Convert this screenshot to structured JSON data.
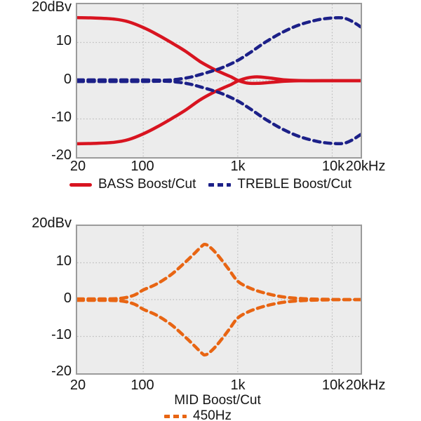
{
  "chart_data": [
    {
      "type": "line",
      "x_scale": "log",
      "x_range_hz": [
        20,
        20000
      ],
      "ylim": [
        -20,
        20
      ],
      "y_axis_unit_label": "20dBv",
      "y_tick_labels": [
        "10",
        "0",
        "-10",
        "-20"
      ],
      "y_tick_values": [
        10,
        0,
        -10,
        -20
      ],
      "x_tick_labels": [
        "20",
        "100",
        "1k",
        "10k",
        "20kHz"
      ],
      "x_tick_values_hz": [
        20,
        100,
        1000,
        10000,
        20000
      ],
      "grid_x_hz": [
        100,
        1000,
        10000
      ],
      "grid_y_db": [
        10,
        0,
        -10
      ],
      "plot_background": "#ececec",
      "grid_color": "#bdbdbd",
      "border_color": "#9b9b9b",
      "legend": [
        {
          "label": "BASS Boost/Cut",
          "color": "#d81420",
          "style": "solid"
        },
        {
          "label": "TREBLE Boost/Cut",
          "color": "#1c2088",
          "style": "dashed"
        }
      ],
      "series": [
        {
          "name": "BASS boost",
          "color": "#d81420",
          "style": "solid",
          "points": [
            [
              20,
              16.5
            ],
            [
              30,
              16.4
            ],
            [
              50,
              16.1
            ],
            [
              70,
              15.4
            ],
            [
              100,
              13.9
            ],
            [
              140,
              12.1
            ],
            [
              200,
              9.9
            ],
            [
              280,
              7.7
            ],
            [
              400,
              5.0
            ],
            [
              550,
              3.1
            ],
            [
              700,
              1.9
            ],
            [
              850,
              1.0
            ],
            [
              1000,
              0.1
            ],
            [
              1250,
              -0.6
            ],
            [
              1600,
              -0.7
            ],
            [
              2200,
              -0.45
            ],
            [
              3200,
              -0.15
            ],
            [
              5000,
              0
            ],
            [
              10000,
              0
            ],
            [
              20000,
              0
            ]
          ]
        },
        {
          "name": "BASS cut",
          "color": "#d81420",
          "style": "solid",
          "points": [
            [
              20,
              -16.5
            ],
            [
              30,
              -16.4
            ],
            [
              50,
              -16.1
            ],
            [
              70,
              -15.4
            ],
            [
              100,
              -13.9
            ],
            [
              140,
              -12.1
            ],
            [
              200,
              -9.9
            ],
            [
              280,
              -7.7
            ],
            [
              400,
              -5.0
            ],
            [
              550,
              -3.1
            ],
            [
              700,
              -1.9
            ],
            [
              850,
              -1.0
            ],
            [
              1000,
              -0.1
            ],
            [
              1250,
              0.7
            ],
            [
              1600,
              1.0
            ],
            [
              2200,
              0.7
            ],
            [
              3200,
              0.2
            ],
            [
              5000,
              0
            ],
            [
              10000,
              0
            ],
            [
              20000,
              0
            ]
          ]
        },
        {
          "name": "TREBLE boost",
          "color": "#1c2088",
          "style": "dashed",
          "points": [
            [
              20,
              0.2
            ],
            [
              50,
              0.2
            ],
            [
              100,
              0.2
            ],
            [
              150,
              0.15
            ],
            [
              200,
              0.2
            ],
            [
              300,
              0.8
            ],
            [
              400,
              1.6
            ],
            [
              550,
              2.6
            ],
            [
              700,
              3.5
            ],
            [
              1000,
              5.3
            ],
            [
              1400,
              7.6
            ],
            [
              2000,
              10.2
            ],
            [
              3000,
              12.7
            ],
            [
              4500,
              14.6
            ],
            [
              7000,
              15.9
            ],
            [
              10000,
              16.4
            ],
            [
              13000,
              16.4
            ],
            [
              16000,
              15.6
            ],
            [
              20000,
              14.1
            ]
          ]
        },
        {
          "name": "TREBLE cut",
          "color": "#1c2088",
          "style": "dashed",
          "points": [
            [
              20,
              -0.2
            ],
            [
              50,
              -0.2
            ],
            [
              100,
              -0.2
            ],
            [
              150,
              -0.15
            ],
            [
              200,
              -0.2
            ],
            [
              300,
              -0.8
            ],
            [
              400,
              -1.6
            ],
            [
              550,
              -2.6
            ],
            [
              700,
              -3.5
            ],
            [
              1000,
              -5.3
            ],
            [
              1400,
              -7.6
            ],
            [
              2000,
              -10.2
            ],
            [
              3000,
              -12.7
            ],
            [
              4500,
              -14.6
            ],
            [
              7000,
              -15.9
            ],
            [
              10000,
              -16.4
            ],
            [
              13000,
              -16.4
            ],
            [
              16000,
              -15.6
            ],
            [
              20000,
              -14.1
            ]
          ]
        }
      ]
    },
    {
      "type": "line",
      "title": "MID Boost/Cut",
      "x_scale": "log",
      "x_range_hz": [
        20,
        20000
      ],
      "ylim": [
        -20,
        20
      ],
      "y_axis_unit_label": "20dBv",
      "y_tick_labels": [
        "10",
        "0",
        "-10",
        "-20"
      ],
      "y_tick_values": [
        10,
        0,
        -10,
        -20
      ],
      "x_tick_labels": [
        "20",
        "100",
        "1k",
        "10k",
        "20kHz"
      ],
      "x_tick_values_hz": [
        20,
        100,
        1000,
        10000,
        20000
      ],
      "grid_x_hz": [
        100,
        1000,
        10000
      ],
      "grid_y_db": [
        10,
        0,
        -10
      ],
      "plot_background": "#ececec",
      "grid_color": "#bdbdbd",
      "border_color": "#9b9b9b",
      "legend": [
        {
          "label": "450Hz",
          "color": "#e86513",
          "style": "dashed"
        }
      ],
      "series": [
        {
          "name": "MID boost",
          "color": "#e86513",
          "style": "dashed",
          "points": [
            [
              20,
              0.2
            ],
            [
              40,
              0.2
            ],
            [
              60,
              0.4
            ],
            [
              80,
              1.2
            ],
            [
              100,
              2.6
            ],
            [
              140,
              4.3
            ],
            [
              200,
              6.9
            ],
            [
              280,
              10.2
            ],
            [
              350,
              12.6
            ],
            [
              420,
              14.6
            ],
            [
              450,
              15.0
            ],
            [
              500,
              14.4
            ],
            [
              600,
              12.4
            ],
            [
              800,
              8.3
            ],
            [
              1000,
              5.0
            ],
            [
              1300,
              3.3
            ],
            [
              1700,
              2.2
            ],
            [
              2300,
              1.3
            ],
            [
              3200,
              0.65
            ],
            [
              5000,
              0.25
            ],
            [
              8000,
              0.1
            ],
            [
              12000,
              0
            ],
            [
              20000,
              0
            ]
          ]
        },
        {
          "name": "MID cut",
          "color": "#e86513",
          "style": "dashed",
          "points": [
            [
              20,
              -0.2
            ],
            [
              40,
              -0.2
            ],
            [
              60,
              -0.4
            ],
            [
              80,
              -1.2
            ],
            [
              100,
              -2.6
            ],
            [
              140,
              -4.3
            ],
            [
              200,
              -6.9
            ],
            [
              280,
              -10.2
            ],
            [
              350,
              -12.6
            ],
            [
              420,
              -14.6
            ],
            [
              450,
              -15.0
            ],
            [
              500,
              -14.4
            ],
            [
              600,
              -12.4
            ],
            [
              800,
              -8.3
            ],
            [
              1000,
              -5.0
            ],
            [
              1300,
              -3.3
            ],
            [
              1700,
              -2.2
            ],
            [
              2300,
              -1.3
            ],
            [
              3200,
              -0.65
            ],
            [
              5000,
              -0.25
            ],
            [
              8000,
              -0.1
            ],
            [
              12000,
              0
            ],
            [
              20000,
              0
            ]
          ]
        }
      ]
    }
  ]
}
